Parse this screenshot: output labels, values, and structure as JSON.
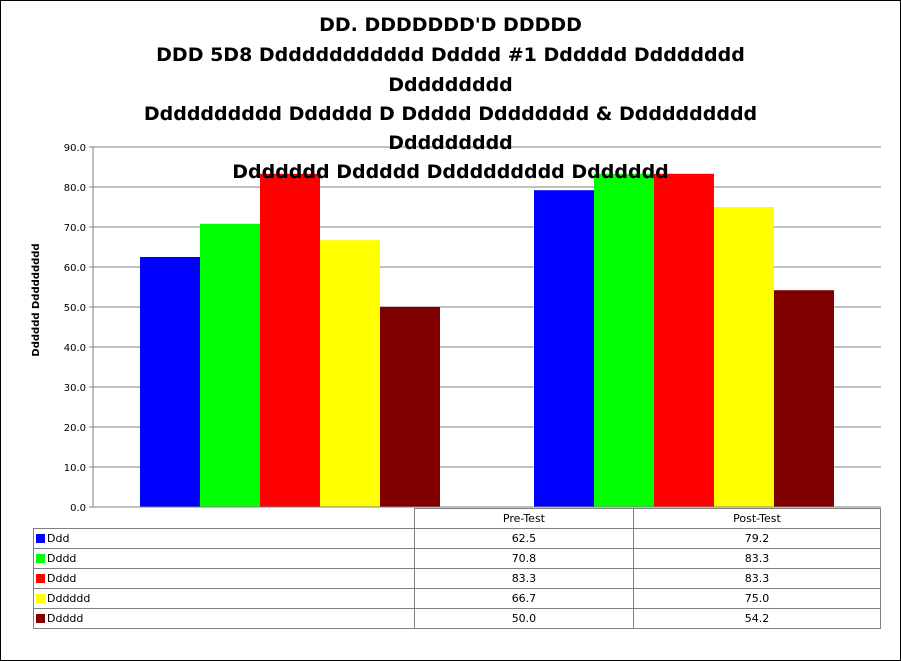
{
  "chart_data": {
    "type": "bar",
    "title_lines": [
      "DD. DDDDDDD'D DDDDD",
      "DDD 5D8 Dddddddddddd Ddddd #1 Dddddd Dddddddd",
      "Ddddddddd",
      "Dddddddddd Dddddd D Ddddd Dddddddd & Dddddddddd",
      "Ddddddddd",
      "Ddddddd Dddddd Dddddddddd Ddddddd"
    ],
    "ylabel": "Dddddd Ddddddddd",
    "xlabel": "",
    "ylim": [
      0,
      90
    ],
    "yticks": [
      "0.0",
      "10.0",
      "20.0",
      "30.0",
      "40.0",
      "50.0",
      "60.0",
      "70.0",
      "80.0",
      "90.0"
    ],
    "categories": [
      "Pre-Test",
      "Post-Test"
    ],
    "series": [
      {
        "name": "Ddd",
        "color": "#0000FF",
        "values": [
          62.5,
          79.2
        ],
        "labels": [
          "62.5",
          "79.2"
        ]
      },
      {
        "name": "Dddd",
        "color": "#00FF00",
        "values": [
          70.8,
          83.3
        ],
        "labels": [
          "70.8",
          "83.3"
        ]
      },
      {
        "name": "Dddd",
        "color": "#FF0000",
        "values": [
          83.3,
          83.3
        ],
        "labels": [
          "83.3",
          "83.3"
        ]
      },
      {
        "name": "Dddddd",
        "color": "#FFFF00",
        "values": [
          66.7,
          75.0
        ],
        "labels": [
          "66.7",
          "75.0"
        ]
      },
      {
        "name": "Ddddd",
        "color": "#800000",
        "values": [
          50.0,
          54.2
        ],
        "labels": [
          "50.0",
          "54.2"
        ]
      }
    ],
    "grid": true,
    "legend": "data-table-below"
  }
}
